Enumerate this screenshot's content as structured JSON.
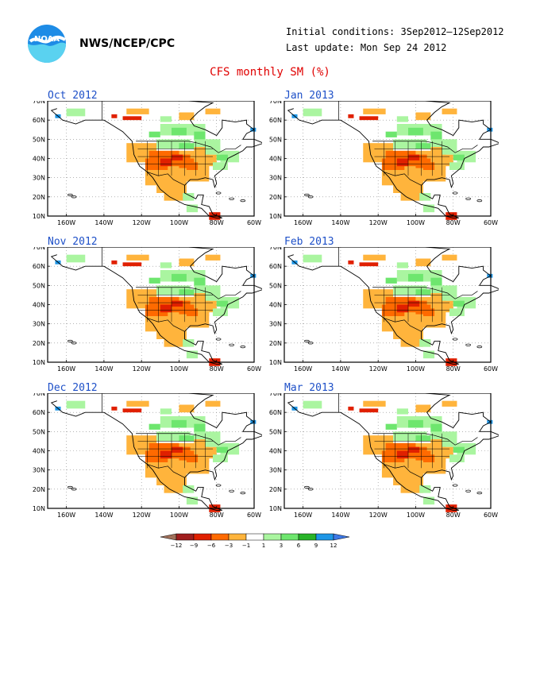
{
  "header": {
    "agency": "NWS/NCEP/CPC",
    "initial_conditions": "Initial conditions: 3Sep2012–12Sep2012",
    "last_update": "Last update: Mon Sep 24 2012",
    "title": "CFS monthly SM (%)"
  },
  "logo": {
    "icon": "noaa-logo-icon",
    "text": "NOAA"
  },
  "panels": [
    {
      "label": "Oct 2012"
    },
    {
      "label": "Jan 2013"
    },
    {
      "label": "Nov 2012"
    },
    {
      "label": "Feb 2013"
    },
    {
      "label": "Dec 2012"
    },
    {
      "label": "Mar 2013"
    }
  ],
  "map_axes": {
    "lat_labels": [
      "70N",
      "60N",
      "50N",
      "40N",
      "30N",
      "20N",
      "10N"
    ],
    "lon_labels": [
      "160W",
      "140W",
      "120W",
      "100W",
      "80W",
      "60W"
    ]
  },
  "colorbar": {
    "tick_labels": [
      "−12",
      "−9",
      "−6",
      "−3",
      "−1",
      "1",
      "3",
      "6",
      "9",
      "12"
    ],
    "colors": [
      "#a0705a",
      "#a01e1e",
      "#e02000",
      "#ff6a00",
      "#ffb43c",
      "#ffffff",
      "#aaf5a0",
      "#6ee66e",
      "#28b428",
      "#1e96e6",
      "#3c78e6"
    ]
  }
}
